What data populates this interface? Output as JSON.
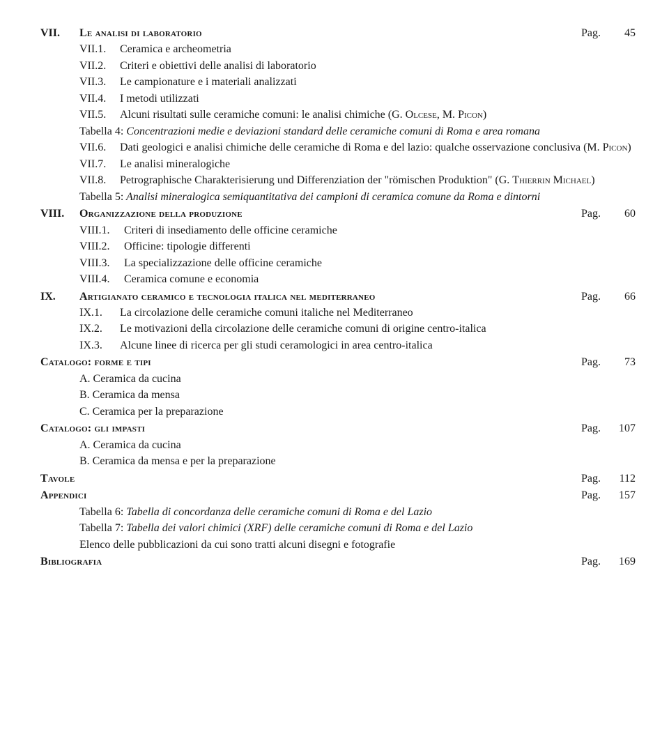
{
  "pagLabel": "Pag.",
  "vii": {
    "roman": "VII.",
    "title": "Le analisi di laboratorio",
    "page": "45",
    "items": [
      {
        "num": "VII.1.",
        "txt": "Ceramica e archeometria"
      },
      {
        "num": "VII.2.",
        "txt": "Criteri e obiettivi delle analisi di laboratorio"
      },
      {
        "num": "VII.3.",
        "txt": "Le campionature e i materiali analizzati"
      },
      {
        "num": "VII.4.",
        "txt": "I metodi utilizzati"
      },
      {
        "num": "VII.5.",
        "txt": "Alcuni risultati sulle ceramiche comuni: le analisi chimiche (G. Olcese, M. Picon)",
        "sc": true
      }
    ],
    "tab4a": "Tabella 4:",
    "tab4b": " Concentrazioni medie e deviazioni standard delle ceramiche comuni di Roma e area romana",
    "items2": [
      {
        "num": "VII.6.",
        "txt": "Dati geologici e analisi chimiche delle ceramiche di Roma e del lazio: qualche osservazione conclusiva (M. Picon)",
        "sc": true
      },
      {
        "num": "VII.7.",
        "txt": "Le analisi mineralogiche"
      },
      {
        "num": "VII.8.",
        "txt": "Petrographische Charakterisierung und Differenziation der \"römischen Produktion\" (G. Thierrin Michael)",
        "sc": true
      }
    ],
    "tab5a": "Tabella 5:",
    "tab5b": " Analisi mineralogica semiquantitativa dei campioni di ceramica comune da Roma e dintorni"
  },
  "viii": {
    "roman": "VIII.",
    "title": "Organizzazione della produzione",
    "page": "60",
    "items": [
      {
        "num": "VIII.1.",
        "txt": "Criteri di insediamento delle officine ceramiche"
      },
      {
        "num": "VIII.2.",
        "txt": "Officine: tipologie differenti"
      },
      {
        "num": "VIII.3.",
        "txt": "La specializzazione delle officine ceramiche"
      },
      {
        "num": "VIII.4.",
        "txt": "Ceramica comune e economia"
      }
    ]
  },
  "ix": {
    "roman": "IX.",
    "title": "Artigianato ceramico e tecnologia italica nel mediterraneo",
    "page": "66",
    "items": [
      {
        "num": "IX.1.",
        "txt": "La circolazione delle ceramiche comuni italiche nel Mediterraneo"
      },
      {
        "num": "IX.2.",
        "txt": "Le motivazioni della circolazione delle ceramiche comuni di origine centro-italica"
      },
      {
        "num": "IX.3.",
        "txt": "Alcune linee di ricerca per gli studi ceramologici in area centro-italica"
      }
    ]
  },
  "catForme": {
    "title": "Catalogo: forme e tipi",
    "page": "73",
    "items": [
      "A. Ceramica da cucina",
      "B. Ceramica da mensa",
      "C. Ceramica per la preparazione"
    ]
  },
  "catImpasti": {
    "title": "Catalogo: gli impasti",
    "page": "107",
    "items": [
      "A. Ceramica da cucina",
      "B. Ceramica da mensa e per la preparazione"
    ]
  },
  "tavole": {
    "title": "Tavole",
    "page": "112"
  },
  "appendici": {
    "title": "Appendici",
    "page": "157",
    "tab6a": "Tabella 6:",
    "tab6b": " Tabella di concordanza delle ceramiche comuni di Roma e del Lazio",
    "tab7a": "Tabella 7:",
    "tab7b": " Tabella dei valori chimici (XRF) delle ceramiche comuni di Roma e del Lazio",
    "elenco": "Elenco delle pubblicazioni da cui sono tratti alcuni disegni e fotografie"
  },
  "biblio": {
    "title": "Bibliografia",
    "page": "169"
  }
}
